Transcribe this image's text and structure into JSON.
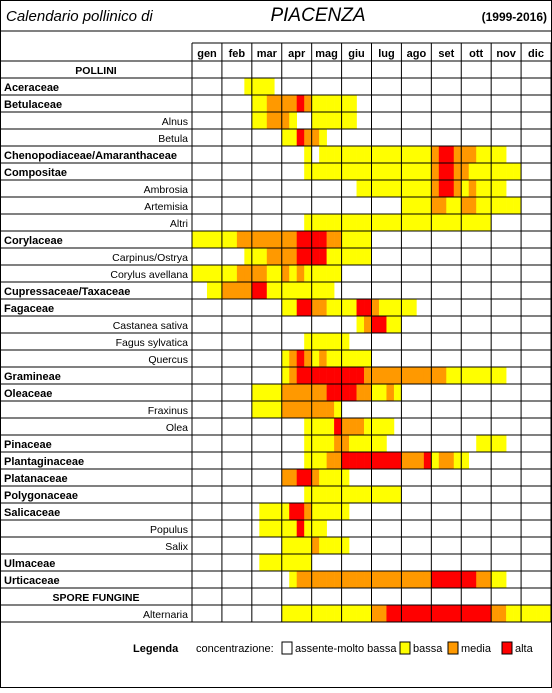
{
  "header": {
    "title_prefix": "Calendario pollinico di",
    "city": "PIACENZA",
    "years": "(1999-2016)"
  },
  "legend": {
    "title": "Legenda",
    "label": "concentrazione:",
    "levels": [
      {
        "label": "assente-molto bassa",
        "color": "#ffffff"
      },
      {
        "label": "bassa",
        "color": "#ffff00"
      },
      {
        "label": "media",
        "color": "#ff9900"
      },
      {
        "label": "alta",
        "color": "#ff0000"
      }
    ]
  },
  "colors": {
    "0": "#ffffff",
    "1": "#ffff00",
    "2": "#ff9900",
    "3": "#ff0000"
  },
  "chart_data": {
    "type": "heatmap",
    "title": "Calendario pollinico di PIACENZA (1999-2016)",
    "columns": [
      "gen",
      "feb",
      "mar",
      "apr",
      "mag",
      "giu",
      "lug",
      "ago",
      "set",
      "ott",
      "nov",
      "dic"
    ],
    "value_scale": {
      "0": "assente-molto bassa",
      "1": "bassa",
      "2": "media",
      "3": "alta"
    },
    "rows": [
      {
        "label": "POLLINI",
        "kind": "section"
      },
      {
        "label": "Aceraceae",
        "kind": "family",
        "codes": "000000011110000000000000000000000000000000000000"
      },
      {
        "label": "Betulaceae",
        "kind": "family",
        "codes": "000000001122223211111100000000000000000000000000"
      },
      {
        "label": "Alnus",
        "kind": "species",
        "codes": "000000001122210011111100000000000000000000000000"
      },
      {
        "label": "Betula",
        "kind": "species",
        "codes": "000000000000113221000000000000000000000000000000"
      },
      {
        "label": "Chenopodiaceae/Amaranthaceae",
        "kind": "family",
        "codes": "000000000000000101111111111111112332221111000000"
      },
      {
        "label": "Compositae",
        "kind": "family",
        "codes": "000000000000000111111111111111112332211111110000"
      },
      {
        "label": "Ambrosia",
        "kind": "species",
        "codes": "000000000000000000000011111111112332121111000000"
      },
      {
        "label": "Artemisia",
        "kind": "species",
        "codes": "000000000000000000000000000011112211221111110000"
      },
      {
        "label": "Altri",
        "kind": "species",
        "codes": "000000000000000111111111111111111111111100000000"
      },
      {
        "label": "Corylaceae",
        "kind": "family",
        "codes": "111111222222223333221111000000000000000000000000"
      },
      {
        "label": "Carpinus/Ostrya",
        "kind": "species",
        "codes": "000000011122223333111111000000000000000000000000"
      },
      {
        "label": "Corylus avellana",
        "kind": "species",
        "codes": "111111222211212111110000000000000000000000000000"
      },
      {
        "label": "Cupressaceae/Taxaceae",
        "kind": "family",
        "codes": "001122223311111111100000000000000000000000000000"
      },
      {
        "label": "Fagaceae",
        "kind": "family",
        "codes": "000000000000113322111133211111000000000000000000"
      },
      {
        "label": "Castanea sativa",
        "kind": "species",
        "codes": "000000000000000000000012331100000000000000000000"
      },
      {
        "label": "Fagus sylvatica",
        "kind": "species",
        "codes": "000000000000000111111000000000000000000000000000"
      },
      {
        "label": "Quercus",
        "kind": "species",
        "codes": "000000000000123212111111000000000000000000000000"
      },
      {
        "label": "Gramineae",
        "kind": "family",
        "codes": "000000000000123333333332222222222211111111000000"
      },
      {
        "label": "Oleaceae",
        "kind": "family",
        "codes": "000000001111222222333322112100000000000000000000"
      },
      {
        "label": "Fraxinus",
        "kind": "species",
        "codes": "000000001111222222210000000000000000000000000000"
      },
      {
        "label": "Olea",
        "kind": "species",
        "codes": "000000000000000111132221111000000000000000000000"
      },
      {
        "label": "Pinaceae",
        "kind": "family",
        "codes": "000000000000000111122111110000000000001111000000"
      },
      {
        "label": "Plantaginaceae",
        "kind": "family",
        "codes": "000000000000000111223333333322231221100000000000"
      },
      {
        "label": "Platanaceae",
        "kind": "family",
        "codes": "000000000000223321111000000000000000000000000000"
      },
      {
        "label": "Polygonaceae",
        "kind": "family",
        "codes": "000000000000000111111111111100000000000000000000"
      },
      {
        "label": "Salicaceae",
        "kind": "family",
        "codes": "000000000111133211111000000000000000000000000000"
      },
      {
        "label": "Populus",
        "kind": "species",
        "codes": "000000000111113111000000000000000000000000000000"
      },
      {
        "label": "Salix",
        "kind": "species",
        "codes": "000000000000111121111000000000000000000000000000"
      },
      {
        "label": "Ulmaceae",
        "kind": "family",
        "codes": "000000000111111100000000000000000000000000000000"
      },
      {
        "label": "Urticaceae",
        "kind": "family",
        "codes": "000000000000012222222222222222223333332211000000"
      },
      {
        "label": "SPORE FUNGINE",
        "kind": "section"
      },
      {
        "label": "Alternaria",
        "kind": "species",
        "codes": "000000000000111111111111223333333333333322111111"
      }
    ]
  }
}
